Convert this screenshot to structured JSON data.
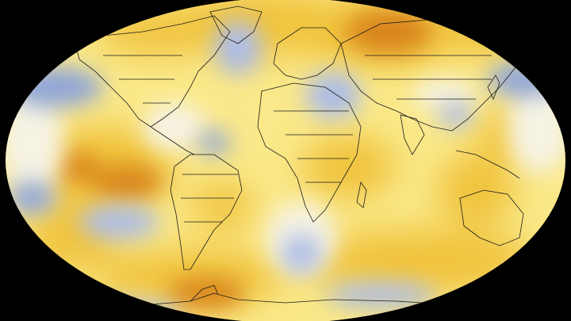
{
  "map": {
    "projection": "robinson-like",
    "background_color": "#000000",
    "palette": {
      "strong_warm": "#d9861a",
      "warm": "#f0c23a",
      "mild_warm": "#fae98a",
      "neutral": "#f6f3e4",
      "cool": "#aebde6",
      "strong_cool": "#8ea4da",
      "coastline": "#1a1a1a"
    }
  }
}
